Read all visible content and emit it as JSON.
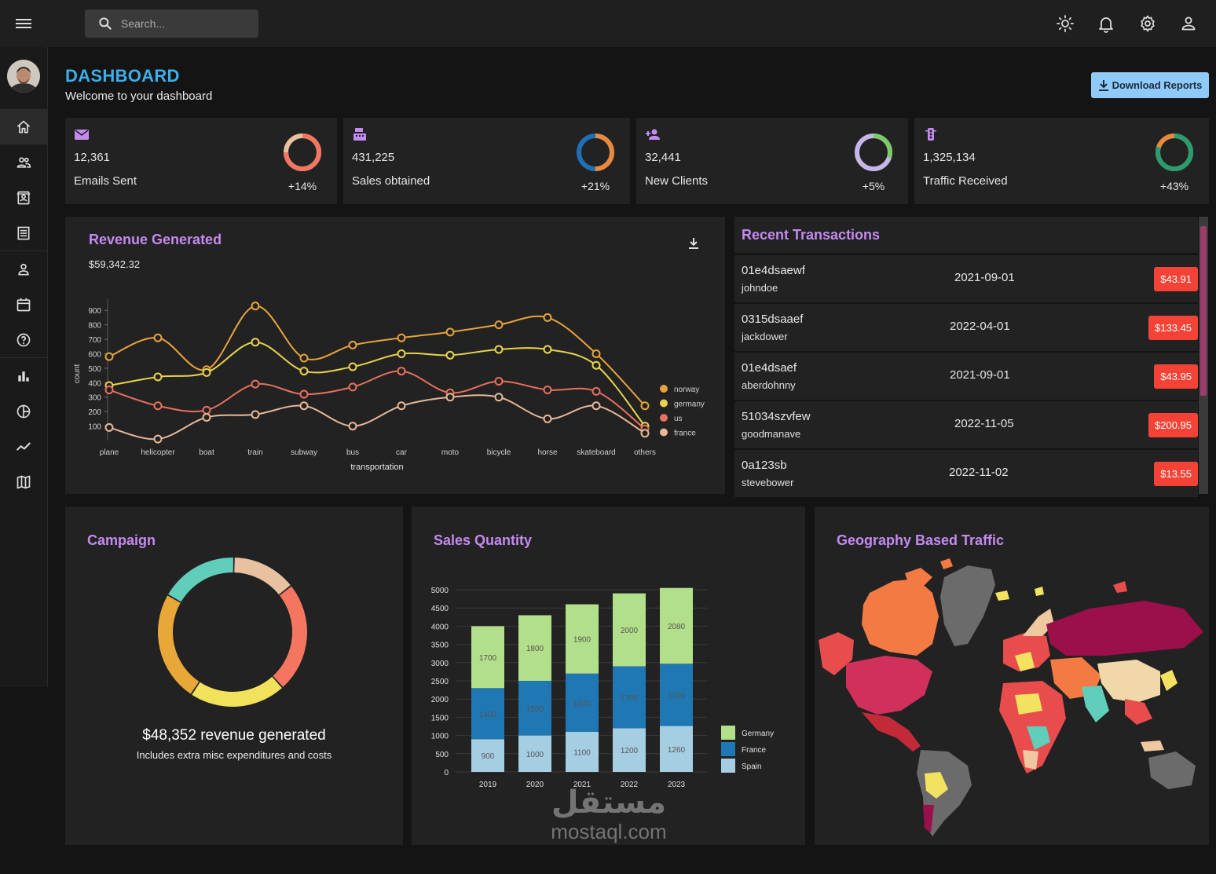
{
  "topbar": {
    "search_placeholder": "Search...",
    "icons": [
      "menu-icon",
      "search-icon",
      "light-mode-icon",
      "bell-icon",
      "gear-icon",
      "user-icon"
    ]
  },
  "sidebar": {
    "items": [
      "home-icon",
      "team-icon",
      "contacts-icon",
      "invoices-icon",
      "profile-icon",
      "calendar-icon",
      "help-icon",
      "bar-chart-icon",
      "pie-chart-icon",
      "line-chart-icon",
      "map-icon"
    ],
    "active": "home-icon"
  },
  "header": {
    "title": "DASHBOARD",
    "subtitle": "Welcome to your dashboard",
    "download_label": "Download Reports"
  },
  "stats": [
    {
      "value": "12,361",
      "label": "Emails Sent",
      "delta": "+14%",
      "progress": 0.75,
      "icon": "mail-icon"
    },
    {
      "value": "431,225",
      "label": "Sales obtained",
      "delta": "+21%",
      "progress": 0.5,
      "icon": "point-of-sale-icon"
    },
    {
      "value": "32,441",
      "label": "New Clients",
      "delta": "+5%",
      "progress": 0.3,
      "icon": "person-add-icon"
    },
    {
      "value": "1,325,134",
      "label": "Traffic Received",
      "delta": "+43%",
      "progress": 0.8,
      "icon": "traffic-icon"
    }
  ],
  "revenue": {
    "title": "Revenue Generated",
    "amount": "$59,342.32"
  },
  "transactions": {
    "title": "Recent Transactions",
    "rows": [
      {
        "id": "01e4dsaewf",
        "user": "johndoe",
        "date": "2021-09-01",
        "cost": "$43.91"
      },
      {
        "id": "0315dsaaef",
        "user": "jackdower",
        "date": "2022-04-01",
        "cost": "$133.45"
      },
      {
        "id": "01e4dsaef",
        "user": "aberdohnny",
        "date": "2021-09-01",
        "cost": "$43.95"
      },
      {
        "id": "51034szvfew",
        "user": "goodmanave",
        "date": "2022-11-05",
        "cost": "$200.95"
      },
      {
        "id": "0a123sb",
        "user": "stevebower",
        "date": "2022-11-02",
        "cost": "$13.55"
      }
    ]
  },
  "campaign": {
    "title": "Campaign",
    "revenue_text": "$48,352 revenue generated",
    "note": "Includes extra misc expenditures and costs"
  },
  "sales": {
    "title": "Sales Quantity"
  },
  "geo": {
    "title": "Geography Based Traffic"
  },
  "watermark": {
    "arabic": "مستقل",
    "latin": "mostaql.com"
  },
  "chart_data": [
    {
      "type": "line",
      "x": [
        "plane",
        "helicopter",
        "boat",
        "train",
        "subway",
        "bus",
        "car",
        "moto",
        "bicycle",
        "horse",
        "skateboard",
        "others"
      ],
      "xlabel": "transportation",
      "ylabel": "count",
      "yticks": [
        100,
        200,
        300,
        400,
        500,
        600,
        700,
        800,
        900
      ],
      "ylim": [
        0,
        950
      ],
      "legend": "right",
      "series": [
        {
          "name": "norway",
          "color": "#e8a33d",
          "values": [
            580,
            710,
            490,
            930,
            570,
            660,
            710,
            750,
            800,
            850,
            600,
            240
          ]
        },
        {
          "name": "germany",
          "color": "#e8d44d",
          "values": [
            380,
            440,
            470,
            680,
            480,
            510,
            600,
            590,
            630,
            630,
            520,
            100
          ]
        },
        {
          "name": "us",
          "color": "#e8705e",
          "values": [
            350,
            240,
            210,
            390,
            320,
            370,
            480,
            330,
            410,
            350,
            340,
            80
          ]
        },
        {
          "name": "france",
          "color": "#e8b89a",
          "values": [
            90,
            10,
            160,
            180,
            240,
            100,
            240,
            300,
            300,
            150,
            240,
            50
          ]
        }
      ]
    },
    {
      "type": "pie",
      "subtype": "donut",
      "slices": [
        {
          "color": "#e8c1a0",
          "value": 14
        },
        {
          "color": "#f47560",
          "value": 24
        },
        {
          "color": "#f1e15b",
          "value": 21
        },
        {
          "color": "#e8a838",
          "value": 24
        },
        {
          "color": "#61cdbb",
          "value": 17
        }
      ]
    },
    {
      "type": "bar",
      "stacked": true,
      "categories": [
        "2019",
        "2020",
        "2021",
        "2022",
        "2023"
      ],
      "ylim": [
        0,
        5000
      ],
      "yticks": [
        0,
        500,
        1000,
        1500,
        2000,
        2500,
        3000,
        3500,
        4000,
        4500,
        5000
      ],
      "legend": "bottom-right",
      "series": [
        {
          "name": "Spain",
          "color": "#a6cee3",
          "values": [
            900,
            1000,
            1100,
            1200,
            1260
          ]
        },
        {
          "name": "France",
          "color": "#1f78b4",
          "values": [
            1400,
            1500,
            1600,
            1700,
            1709
          ]
        },
        {
          "name": "Germany",
          "color": "#b2df8a",
          "values": [
            1700,
            1800,
            1900,
            2000,
            2080
          ]
        }
      ]
    }
  ]
}
